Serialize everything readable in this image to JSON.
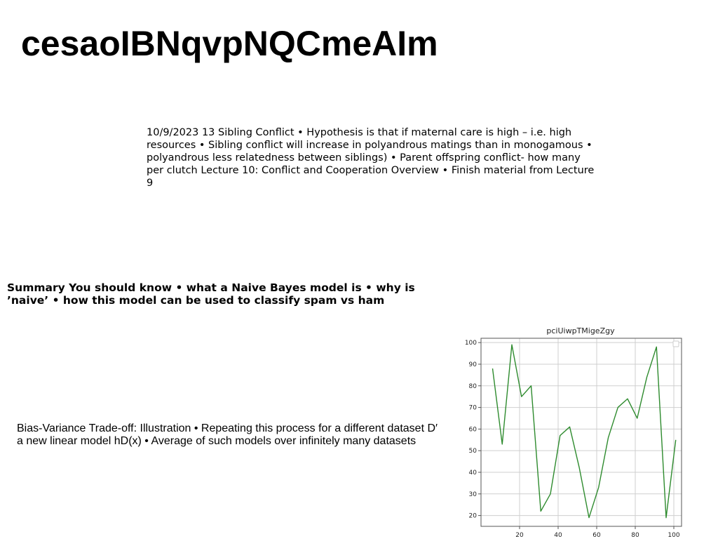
{
  "page": {
    "title": "cesaoIBNqvpNQCmeAIm",
    "paragraphs": [
      "10/9/2023 13 Sibling Conflict • Hypothesis is that if maternal care is high – i.e. high resources • Sibling conflict will increase in polyandrous matings than in monogamous • polyandrous less relatedness between siblings) • Parent offspring conflict- how many per clutch Lecture 10: Conflict and Cooperation Overview • Finish material from Lecture 9",
      "Summary You should know • what a Naive Bayes model is • why is ’naive’ • how this model can be used to classify spam vs ham",
      "Bias-Variance Trade-off: Illustration • Repeating this process for a different dataset D′ a new linear model hD(x) • Average of such models over infinitely many datasets"
    ]
  },
  "chart_data": {
    "type": "line",
    "title": "pciUiwpTMigeZgy",
    "x": [
      6,
      11,
      16,
      21,
      26,
      31,
      36,
      41,
      46,
      51,
      56,
      61,
      66,
      71,
      76,
      81,
      86,
      91,
      96,
      101
    ],
    "series": [
      {
        "values": [
          88,
          53,
          99,
          75,
          80,
          22,
          30,
          57,
          61,
          42,
          19,
          33,
          56,
          70,
          74,
          65,
          84,
          98,
          19,
          55
        ]
      }
    ],
    "xlim": [
      0,
      104
    ],
    "ylim": [
      15,
      102
    ],
    "xticks": [
      20,
      40,
      60,
      80,
      100
    ],
    "yticks": [
      20,
      30,
      40,
      50,
      60,
      70,
      80,
      90,
      100
    ],
    "grid": true,
    "legend": "top-right",
    "color": "#2e8b2e"
  }
}
